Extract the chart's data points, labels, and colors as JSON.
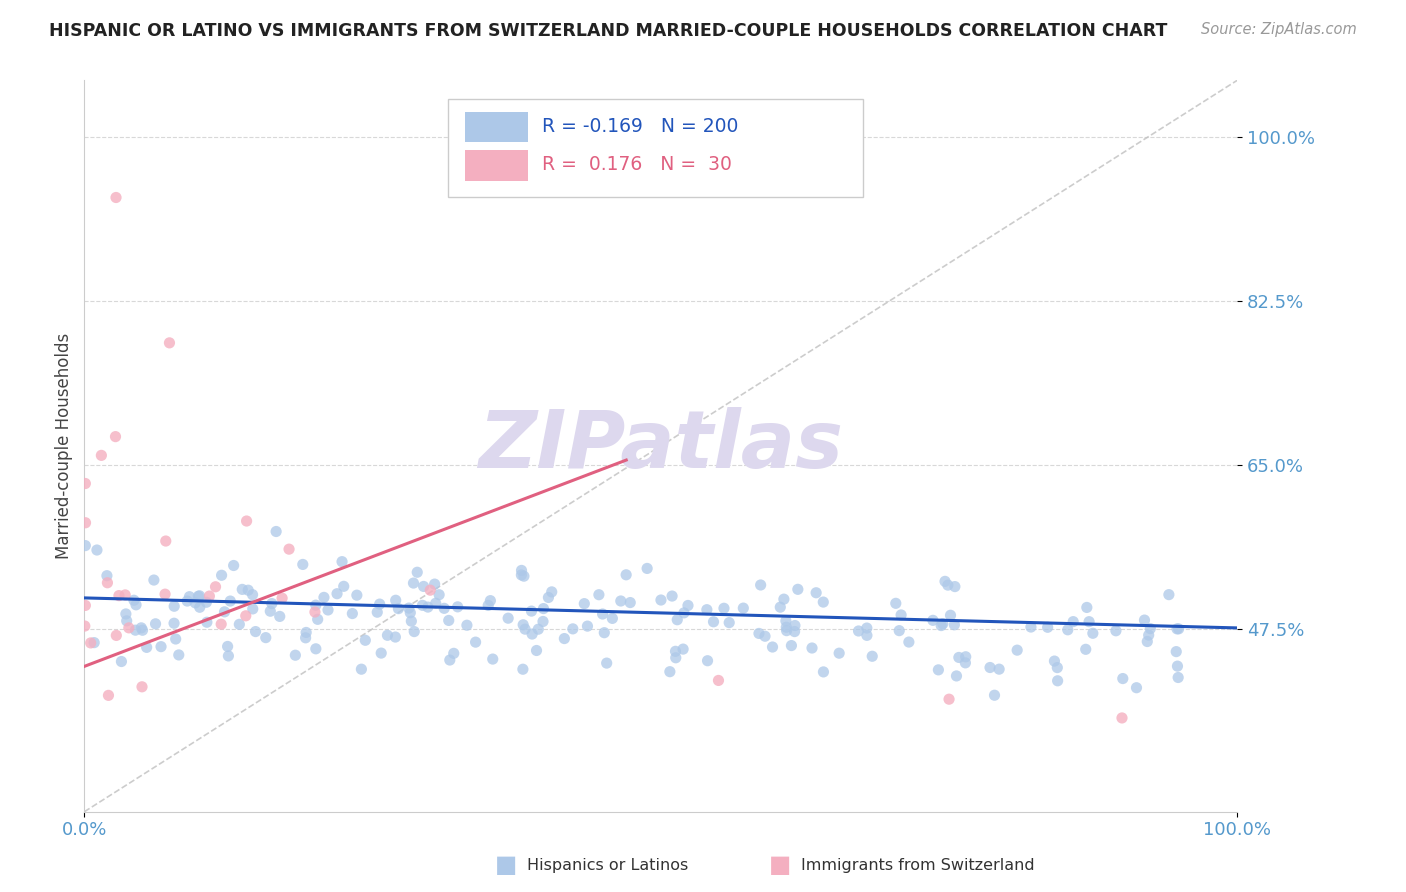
{
  "title": "HISPANIC OR LATINO VS IMMIGRANTS FROM SWITZERLAND MARRIED-COUPLE HOUSEHOLDS CORRELATION CHART",
  "source_text": "Source: ZipAtlas.com",
  "ylabel": "Married-couple Households",
  "xlim": [
    0.0,
    1.0
  ],
  "ylim": [
    0.28,
    1.06
  ],
  "yticks": [
    0.475,
    0.65,
    0.825,
    1.0
  ],
  "ytick_labels": [
    "47.5%",
    "65.0%",
    "82.5%",
    "100.0%"
  ],
  "xtick_labels": [
    "0.0%",
    "100.0%"
  ],
  "xticks": [
    0.0,
    1.0
  ],
  "r_blue": -0.169,
  "n_blue": 200,
  "r_pink": 0.176,
  "n_pink": 30,
  "blue_color": "#adc8e8",
  "pink_color": "#f4afc0",
  "blue_line_color": "#2255bb",
  "pink_line_color": "#e06080",
  "legend_r_blue_color": "#2255bb",
  "legend_n_blue_color": "#e04020",
  "legend_r_pink_color": "#e06080",
  "legend_n_pink_color": "#e04020",
  "watermark_color": "#ddd8ee",
  "watermark_text": "ZIPatlas",
  "blue_line_x": [
    0.0,
    1.0
  ],
  "blue_line_y": [
    0.508,
    0.476
  ],
  "pink_line_x": [
    0.0,
    0.47
  ],
  "pink_line_y": [
    0.435,
    0.655
  ],
  "diag_line_x": [
    0.0,
    1.0
  ],
  "diag_line_y": [
    0.28,
    1.06
  ]
}
